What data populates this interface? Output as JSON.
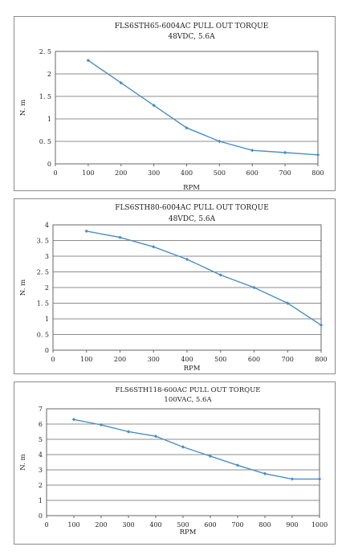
{
  "chart_data": [
    {
      "type": "line",
      "title": "FLS6STH65-6004AC PULL OUT TORQUE",
      "subtitle": "48VDC, 5.6A",
      "xlabel": "RPM",
      "ylabel": "N. m",
      "x": [
        100,
        200,
        300,
        400,
        500,
        600,
        700,
        800
      ],
      "series": [
        {
          "values": [
            2.3,
            1.8,
            1.3,
            0.8,
            0.5,
            0.3,
            0.25,
            0.2
          ]
        }
      ],
      "xlim": [
        0,
        800
      ],
      "ylim": [
        0,
        2.5
      ],
      "xticks": [
        0,
        100,
        200,
        300,
        400,
        500,
        600,
        700,
        800
      ],
      "yticks": [
        0,
        0.5,
        1,
        1.5,
        2,
        2.5
      ],
      "ytick_labels": [
        "0",
        "0. 5",
        "1",
        "1. 5",
        "2",
        "2. 5"
      ],
      "grid": "horizontal",
      "color": "#4a8fc2"
    },
    {
      "type": "line",
      "title": "FLS6STH80-6004AC PULL OUT TORQUE",
      "subtitle": "48VDC, 5.6A",
      "xlabel": "RPM",
      "ylabel": "N. m",
      "x": [
        100,
        200,
        300,
        400,
        500,
        600,
        700,
        800
      ],
      "series": [
        {
          "values": [
            3.8,
            3.6,
            3.3,
            2.9,
            2.4,
            2.0,
            1.5,
            0.8
          ]
        }
      ],
      "xlim": [
        0,
        800
      ],
      "ylim": [
        0,
        4
      ],
      "xticks": [
        0,
        100,
        200,
        300,
        400,
        500,
        600,
        700,
        800
      ],
      "yticks": [
        0,
        0.5,
        1,
        1.5,
        2,
        2.5,
        3,
        3.5,
        4
      ],
      "ytick_labels": [
        "0",
        "0. 5",
        "1",
        "1. 5",
        "2",
        "2. 5",
        "3",
        "3. 5",
        "4"
      ],
      "grid": "horizontal",
      "color": "#4a8fc2"
    },
    {
      "type": "line",
      "title": "FLS6STH118-600AC PULL OUT TORQUE",
      "subtitle": "100VAC, 5.6A",
      "xlabel": "RPM",
      "ylabel": "N. m",
      "x": [
        100,
        200,
        300,
        400,
        500,
        600,
        700,
        800,
        900,
        1000
      ],
      "series": [
        {
          "values": [
            6.3,
            5.95,
            5.5,
            5.2,
            4.5,
            3.9,
            3.3,
            2.75,
            2.4,
            2.4
          ]
        }
      ],
      "xlim": [
        0,
        1000
      ],
      "ylim": [
        0,
        7
      ],
      "xticks": [
        0,
        100,
        200,
        300,
        400,
        500,
        600,
        700,
        800,
        900,
        1000
      ],
      "yticks": [
        0,
        1,
        2,
        3,
        4,
        5,
        6,
        7
      ],
      "ytick_labels": [
        "0",
        "1",
        "2",
        "3",
        "4",
        "5",
        "6",
        "7"
      ],
      "grid": "horizontal",
      "color": "#4a8fc2"
    }
  ]
}
